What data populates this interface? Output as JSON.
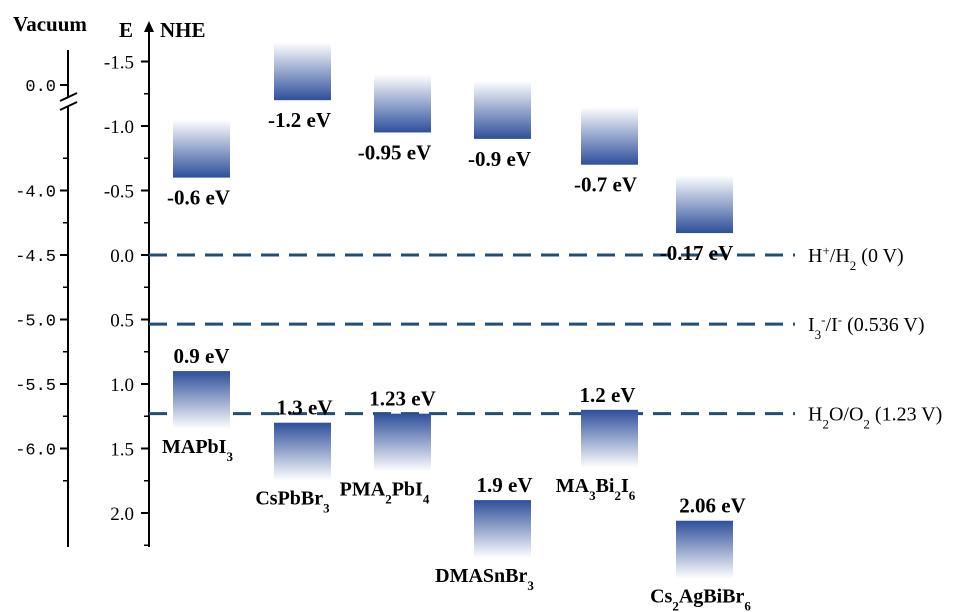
{
  "chart_data": {
    "type": "bar",
    "left_axes": {
      "vacuum": {
        "label": "Vacuum",
        "break_tick": "0.0",
        "ticks": [
          "-4.0",
          "-4.5",
          "-5.0",
          "-5.5",
          "-6.0"
        ]
      },
      "nhe": {
        "e_label": "E",
        "label": "NHE",
        "ticks": [
          "-1.5",
          "-1.0",
          "-0.5",
          "0.0",
          "0.5",
          "1.0",
          "1.5",
          "2.0"
        ],
        "ylim": [
          -1.55,
          2.28
        ],
        "direction": "downward positive"
      }
    },
    "materials": [
      {
        "name_parts": [
          [
            "MAPbI",
            false
          ],
          [
            "3",
            true
          ]
        ],
        "cb": -0.6,
        "vb": 0.9,
        "cb_label": "-0.6 eV",
        "vb_label": "0.9 eV"
      },
      {
        "name_parts": [
          [
            "CsPbBr",
            false
          ],
          [
            "3",
            true
          ]
        ],
        "cb": -1.2,
        "vb": 1.3,
        "cb_label": "-1.2 eV",
        "vb_label": "1.3 eV"
      },
      {
        "name_parts": [
          [
            "PMA",
            false
          ],
          [
            "2",
            true
          ],
          [
            "PbI",
            false
          ],
          [
            "4",
            true
          ]
        ],
        "cb": -0.95,
        "vb": 1.23,
        "cb_label": "-0.95 eV",
        "vb_label": "1.23 eV"
      },
      {
        "name_parts": [
          [
            "DMASnBr",
            false
          ],
          [
            "3",
            true
          ]
        ],
        "cb": -0.9,
        "vb": 1.9,
        "cb_label": "-0.9 eV",
        "vb_label": "1.9 eV"
      },
      {
        "name_parts": [
          [
            "MA",
            false
          ],
          [
            "3",
            true
          ],
          [
            "Bi",
            false
          ],
          [
            "2",
            true
          ],
          [
            "I",
            false
          ],
          [
            "6",
            true
          ]
        ],
        "cb": -0.7,
        "vb": 1.2,
        "cb_label": "-0.7 eV",
        "vb_label": "1.2 eV"
      },
      {
        "name_parts": [
          [
            "Cs",
            false
          ],
          [
            "2",
            true
          ],
          [
            "AgBiBr",
            false
          ],
          [
            "6",
            true
          ]
        ],
        "cb": -0.17,
        "vb": 2.06,
        "cb_label": "-0.17 eV",
        "vb_label": "2.06 eV"
      }
    ],
    "reference_lines": [
      {
        "potential": 0.0,
        "label_parts": [
          [
            "H",
            "n"
          ],
          [
            "+",
            "sup"
          ],
          [
            "/H",
            "n"
          ],
          [
            "2",
            "sub"
          ],
          [
            " (0 V)",
            "n"
          ]
        ]
      },
      {
        "potential": 0.536,
        "label_parts": [
          [
            "I",
            "n"
          ],
          [
            "3",
            "sub"
          ],
          [
            "-",
            "sup"
          ],
          [
            "/I",
            "n"
          ],
          [
            "-",
            "sup"
          ],
          [
            " (0.536 V)",
            "n"
          ]
        ]
      },
      {
        "potential": 1.23,
        "label_parts": [
          [
            "H",
            "n"
          ],
          [
            "2",
            "sub"
          ],
          [
            "O/O",
            "n"
          ],
          [
            "2",
            "sub"
          ],
          [
            "  (1.23 V)",
            "n"
          ]
        ]
      }
    ],
    "colors": {
      "band": "#2e4f9a",
      "band_fade": "#ffffff",
      "reference_line": "#1f4e79",
      "axis": "#000000"
    }
  }
}
